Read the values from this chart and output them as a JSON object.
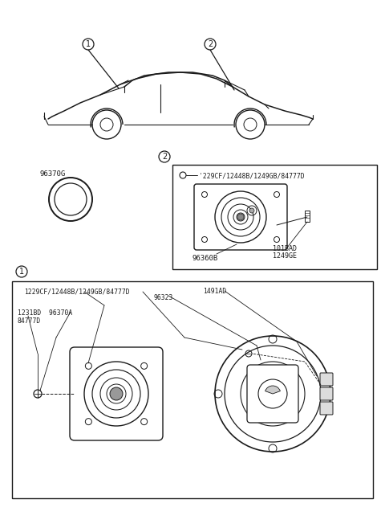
{
  "bg_color": "#ffffff",
  "line_color": "#1a1a1a",
  "fig_width": 4.8,
  "fig_height": 6.57,
  "dpi": 100,
  "part_96370G": "96370G",
  "box2_screw_label": "'229CF/12448B/1249GB/84777D",
  "box2_main_label": "96360B",
  "box2_screw2_label": "101BAD\n1249GE",
  "box1_top_label": "1229CF/12448B/1249GB/84777D",
  "box1_96323": "96323",
  "box1_1491AD": "1491AD",
  "box1_left1": "1231BD  96370A",
  "box1_left2": "84777D"
}
